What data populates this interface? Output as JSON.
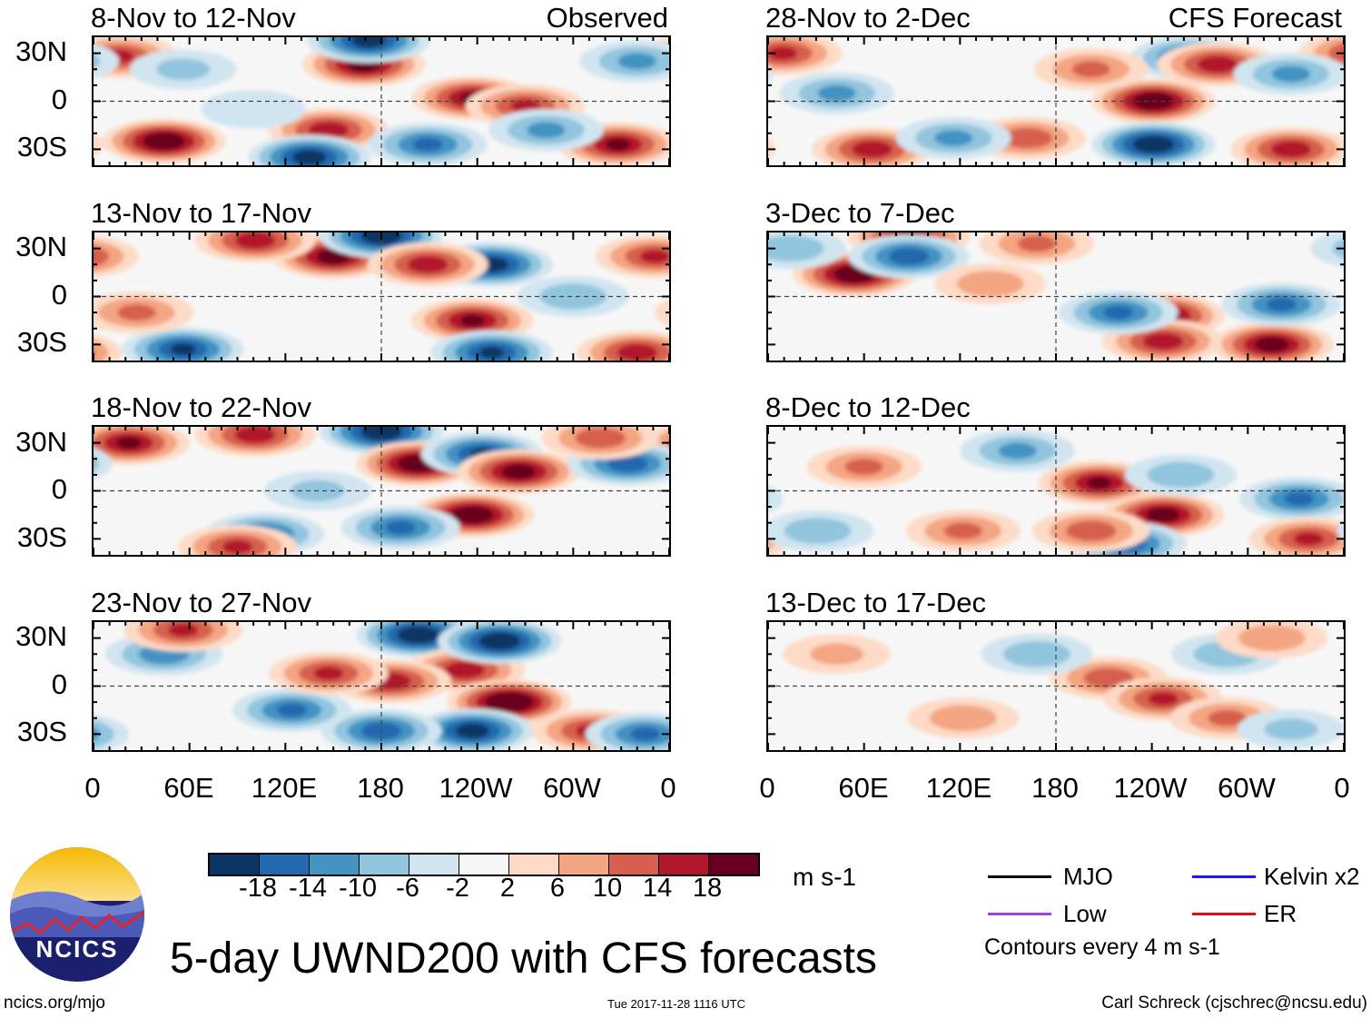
{
  "column_labels": {
    "observed": "Observed",
    "forecast": "CFS Forecast"
  },
  "y_axis_labels": [
    "30N",
    "0",
    "30S"
  ],
  "x_axis_labels": [
    "0",
    "60E",
    "120E",
    "180",
    "120W",
    "60W",
    "0"
  ],
  "panels": [
    {
      "title": "8-Nov to 12-Nov",
      "features": [
        [
          169,
          23,
          20
        ],
        [
          237,
          2,
          18
        ],
        [
          270,
          -3,
          14
        ],
        [
          44,
          -25,
          22
        ],
        [
          147,
          -18,
          16
        ],
        [
          135,
          -35,
          -20
        ],
        [
          209,
          -27,
          -14
        ],
        [
          328,
          -27,
          18
        ],
        [
          172,
          38,
          -20
        ],
        [
          16,
          28,
          14
        ],
        [
          283,
          -18,
          -10
        ],
        [
          340,
          25,
          -10
        ],
        [
          56,
          20,
          -6
        ],
        [
          100,
          -5,
          -5
        ]
      ]
    },
    {
      "title": "13-Nov to 17-Nov",
      "features": [
        [
          150,
          25,
          20
        ],
        [
          180,
          38,
          -22
        ],
        [
          249,
          20,
          -20
        ],
        [
          237,
          -15,
          18
        ],
        [
          209,
          20,
          16
        ],
        [
          56,
          -33,
          -18
        ],
        [
          249,
          -35,
          -18
        ],
        [
          340,
          -35,
          16
        ],
        [
          101,
          35,
          16
        ],
        [
          27,
          -10,
          10
        ],
        [
          351,
          25,
          14
        ],
        [
          300,
          0,
          -8
        ]
      ]
    },
    {
      "title": "18-Nov to 22-Nov",
      "features": [
        [
          180,
          37,
          -22
        ],
        [
          203,
          17,
          22
        ],
        [
          243,
          23,
          -18
        ],
        [
          266,
          12,
          20
        ],
        [
          237,
          -15,
          22
        ],
        [
          22,
          30,
          18
        ],
        [
          101,
          35,
          16
        ],
        [
          107,
          -27,
          -14
        ],
        [
          192,
          -23,
          -14
        ],
        [
          90,
          -35,
          14
        ],
        [
          334,
          17,
          -16
        ],
        [
          317,
          33,
          12
        ],
        [
          140,
          0,
          -6
        ]
      ]
    },
    {
      "title": "23-Nov to 27-Nov",
      "features": [
        [
          203,
          32,
          -22
        ],
        [
          232,
          10,
          16
        ],
        [
          254,
          28,
          -22
        ],
        [
          260,
          -10,
          24
        ],
        [
          237,
          -28,
          -20
        ],
        [
          186,
          3,
          16
        ],
        [
          44,
          20,
          -12
        ],
        [
          56,
          35,
          14
        ],
        [
          124,
          -15,
          -14
        ],
        [
          180,
          -28,
          -16
        ],
        [
          147,
          8,
          14
        ],
        [
          311,
          -28,
          14
        ],
        [
          345,
          -30,
          -14
        ]
      ]
    },
    {
      "title": "28-Nov to 2-Dec",
      "features": [
        [
          241,
          0,
          22
        ],
        [
          241,
          -27,
          -22
        ],
        [
          264,
          27,
          -16
        ],
        [
          281,
          23,
          16
        ],
        [
          65,
          -30,
          16
        ],
        [
          43,
          5,
          -10
        ],
        [
          9,
          30,
          14
        ],
        [
          162,
          -23,
          12
        ],
        [
          116,
          -23,
          -10
        ],
        [
          327,
          -30,
          16
        ],
        [
          327,
          17,
          -10
        ],
        [
          202,
          20,
          10
        ]
      ]
    },
    {
      "title": "3-Dec to 7-Dec",
      "features": [
        [
          54,
          14,
          22
        ],
        [
          88,
          37,
          18
        ],
        [
          88,
          25,
          -16
        ],
        [
          247,
          -12,
          20
        ],
        [
          247,
          -28,
          16
        ],
        [
          219,
          -10,
          -14
        ],
        [
          315,
          -30,
          20
        ],
        [
          321,
          -5,
          -14
        ],
        [
          168,
          33,
          10
        ],
        [
          14,
          30,
          -8
        ],
        [
          139,
          8,
          8
        ]
      ]
    },
    {
      "title": "8-Dec to 12-Dec",
      "features": [
        [
          207,
          5,
          18
        ],
        [
          247,
          -15,
          20
        ],
        [
          224,
          -33,
          -16
        ],
        [
          202,
          -25,
          12
        ],
        [
          156,
          25,
          -10
        ],
        [
          332,
          -5,
          -14
        ],
        [
          338,
          -30,
          14
        ],
        [
          60,
          15,
          10
        ],
        [
          258,
          10,
          -8
        ],
        [
          122,
          -25,
          10
        ],
        [
          31,
          -25,
          -8
        ]
      ]
    },
    {
      "title": "13-Dec to 17-Dec",
      "features": [
        [
          213,
          5,
          12
        ],
        [
          247,
          -8,
          14
        ],
        [
          168,
          20,
          -8
        ],
        [
          122,
          -20,
          8
        ],
        [
          287,
          20,
          -8
        ],
        [
          315,
          30,
          8
        ],
        [
          43,
          20,
          6
        ],
        [
          287,
          -20,
          10
        ],
        [
          327,
          -27,
          -6
        ]
      ]
    }
  ],
  "colorbar": {
    "colors": [
      "#0b3564",
      "#2468ad",
      "#4393c3",
      "#92c5de",
      "#d1e5f0",
      "#f7f7f7",
      "#fddbc7",
      "#f4a582",
      "#d6604d",
      "#b2182b",
      "#67001f"
    ],
    "labels": [
      "-18",
      "-14",
      "-10",
      "-6",
      "-2",
      "2",
      "6",
      "10",
      "14",
      "18"
    ],
    "units": "m s-1"
  },
  "legend": {
    "items": [
      {
        "label": "MJO",
        "color": "#000000"
      },
      {
        "label": "Kelvin x2",
        "color": "#1a1aff"
      },
      {
        "label": "Low",
        "color": "#a040e0"
      },
      {
        "label": "ER",
        "color": "#e01010"
      }
    ],
    "contours_note": "Contours every 4 m s-1"
  },
  "main_title": "5-day UWND200 with CFS forecasts",
  "logo_text": "NCICS",
  "footer": {
    "url": "ncics.org/mjo",
    "timestamp": "Tue 2017-11-28 1116 UTC",
    "credit": "Carl Schreck (cjschrec@ncsu.edu)"
  }
}
